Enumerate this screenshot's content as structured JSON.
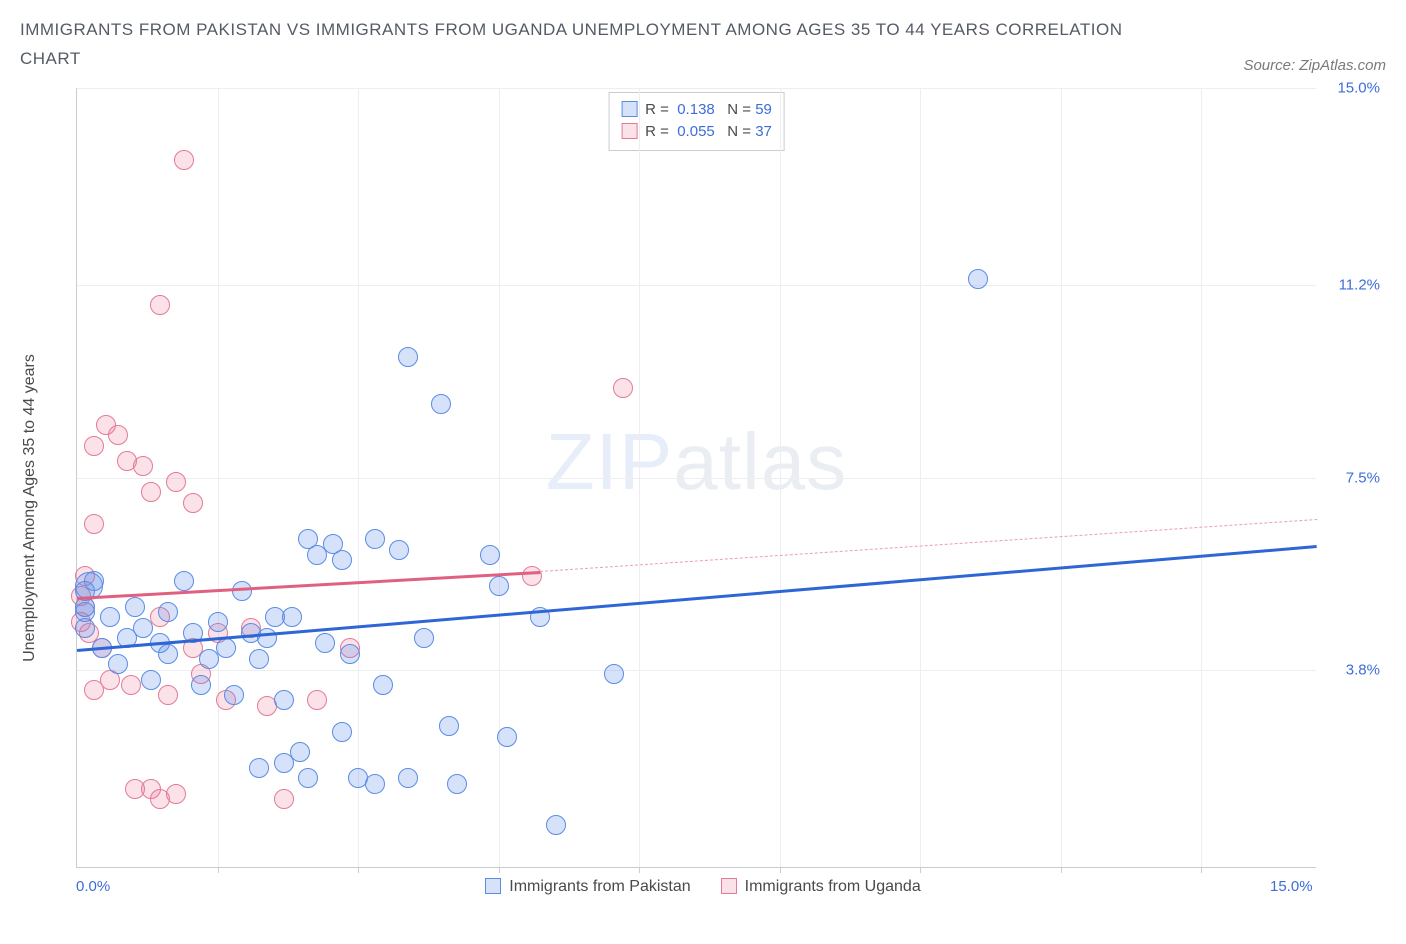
{
  "title": "IMMIGRANTS FROM PAKISTAN VS IMMIGRANTS FROM UGANDA UNEMPLOYMENT AMONG AGES 35 TO 44 YEARS CORRELATION CHART",
  "source": "Source: ZipAtlas.com",
  "ylabel": "Unemployment Among Ages 35 to 44 years",
  "watermark_bold": "ZIP",
  "watermark_thin": "atlas",
  "chart": {
    "type": "scatter",
    "xlim": [
      0,
      15
    ],
    "ylim": [
      0,
      15
    ],
    "xaxis_min_label": "0.0%",
    "xaxis_max_label": "15.0%",
    "y_ticks": [
      {
        "value": 3.8,
        "label": "3.8%"
      },
      {
        "value": 7.5,
        "label": "7.5%"
      },
      {
        "value": 11.2,
        "label": "11.2%"
      },
      {
        "value": 15.0,
        "label": "15.0%"
      }
    ],
    "x_tick_positions": [
      1.7,
      3.4,
      5.1,
      6.8,
      8.5,
      10.2,
      11.9,
      13.6
    ],
    "series": [
      {
        "name": "Immigrants from Pakistan",
        "fill": "rgba(90,140,230,0.25)",
        "stroke": "#5a8ce6",
        "marker_radius": 10,
        "stroke_width": 1.2,
        "trend": {
          "x1": 0,
          "y1": 4.2,
          "x2": 15,
          "y2": 6.2,
          "color": "#2f66d6",
          "width": 2.5
        },
        "points": [
          {
            "x": 0.1,
            "y": 4.6
          },
          {
            "x": 0.1,
            "y": 5.0
          },
          {
            "x": 0.1,
            "y": 5.3
          },
          {
            "x": 0.1,
            "y": 4.9
          },
          {
            "x": 0.15,
            "y": 5.4,
            "r": 14
          },
          {
            "x": 0.3,
            "y": 4.2
          },
          {
            "x": 0.4,
            "y": 4.8
          },
          {
            "x": 0.5,
            "y": 3.9
          },
          {
            "x": 0.6,
            "y": 4.4
          },
          {
            "x": 0.7,
            "y": 5.0
          },
          {
            "x": 0.8,
            "y": 4.6
          },
          {
            "x": 0.9,
            "y": 3.6
          },
          {
            "x": 1.0,
            "y": 4.3
          },
          {
            "x": 1.1,
            "y": 4.9
          },
          {
            "x": 1.1,
            "y": 4.1
          },
          {
            "x": 1.3,
            "y": 5.5
          },
          {
            "x": 1.4,
            "y": 4.5
          },
          {
            "x": 1.5,
            "y": 3.5
          },
          {
            "x": 1.6,
            "y": 4.0
          },
          {
            "x": 1.7,
            "y": 4.7
          },
          {
            "x": 1.8,
            "y": 4.2
          },
          {
            "x": 1.9,
            "y": 3.3
          },
          {
            "x": 2.0,
            "y": 5.3
          },
          {
            "x": 2.1,
            "y": 4.5
          },
          {
            "x": 2.2,
            "y": 1.9
          },
          {
            "x": 2.2,
            "y": 4.0
          },
          {
            "x": 2.3,
            "y": 4.4
          },
          {
            "x": 2.4,
            "y": 4.8
          },
          {
            "x": 2.5,
            "y": 2.0
          },
          {
            "x": 2.5,
            "y": 3.2
          },
          {
            "x": 2.6,
            "y": 4.8
          },
          {
            "x": 2.7,
            "y": 2.2
          },
          {
            "x": 2.8,
            "y": 6.3
          },
          {
            "x": 2.8,
            "y": 1.7
          },
          {
            "x": 2.9,
            "y": 6.0
          },
          {
            "x": 3.0,
            "y": 4.3
          },
          {
            "x": 3.1,
            "y": 6.2
          },
          {
            "x": 3.2,
            "y": 5.9
          },
          {
            "x": 3.2,
            "y": 2.6
          },
          {
            "x": 3.3,
            "y": 4.1
          },
          {
            "x": 3.4,
            "y": 1.7
          },
          {
            "x": 3.6,
            "y": 6.3
          },
          {
            "x": 3.6,
            "y": 1.6
          },
          {
            "x": 3.7,
            "y": 3.5
          },
          {
            "x": 3.9,
            "y": 6.1
          },
          {
            "x": 4.0,
            "y": 9.8
          },
          {
            "x": 4.0,
            "y": 1.7
          },
          {
            "x": 4.2,
            "y": 4.4
          },
          {
            "x": 4.4,
            "y": 8.9
          },
          {
            "x": 4.5,
            "y": 2.7
          },
          {
            "x": 4.6,
            "y": 1.6
          },
          {
            "x": 5.0,
            "y": 6.0
          },
          {
            "x": 5.1,
            "y": 5.4
          },
          {
            "x": 5.2,
            "y": 2.5
          },
          {
            "x": 5.6,
            "y": 4.8
          },
          {
            "x": 5.8,
            "y": 0.8
          },
          {
            "x": 6.5,
            "y": 3.7
          },
          {
            "x": 10.9,
            "y": 11.3
          },
          {
            "x": 0.2,
            "y": 5.5
          }
        ]
      },
      {
        "name": "Immigrants from Uganda",
        "fill": "rgba(235,120,150,0.22)",
        "stroke": "#e47b96",
        "marker_radius": 10,
        "stroke_width": 1.2,
        "trend_solid": {
          "x1": 0,
          "y1": 5.2,
          "x2": 5.6,
          "y2": 5.7,
          "color": "#e0607f",
          "width": 2.5
        },
        "trend_dash": {
          "x1": 5.6,
          "y1": 5.7,
          "x2": 15,
          "y2": 6.7,
          "color": "#e99fb2",
          "width": 1.8
        },
        "points": [
          {
            "x": 0.05,
            "y": 5.2
          },
          {
            "x": 0.05,
            "y": 4.7
          },
          {
            "x": 0.1,
            "y": 5.6
          },
          {
            "x": 0.1,
            "y": 5.0
          },
          {
            "x": 0.15,
            "y": 4.5
          },
          {
            "x": 0.2,
            "y": 8.1
          },
          {
            "x": 0.2,
            "y": 6.6
          },
          {
            "x": 0.2,
            "y": 3.4
          },
          {
            "x": 0.3,
            "y": 4.2
          },
          {
            "x": 0.35,
            "y": 8.5
          },
          {
            "x": 0.4,
            "y": 3.6
          },
          {
            "x": 0.5,
            "y": 8.3
          },
          {
            "x": 0.6,
            "y": 7.8
          },
          {
            "x": 0.65,
            "y": 3.5
          },
          {
            "x": 0.7,
            "y": 1.5
          },
          {
            "x": 0.8,
            "y": 7.7
          },
          {
            "x": 0.9,
            "y": 1.5
          },
          {
            "x": 0.9,
            "y": 7.2
          },
          {
            "x": 1.0,
            "y": 10.8
          },
          {
            "x": 1.0,
            "y": 4.8
          },
          {
            "x": 1.0,
            "y": 1.3
          },
          {
            "x": 1.1,
            "y": 3.3
          },
          {
            "x": 1.2,
            "y": 7.4
          },
          {
            "x": 1.2,
            "y": 1.4
          },
          {
            "x": 1.3,
            "y": 13.6
          },
          {
            "x": 1.4,
            "y": 7.0
          },
          {
            "x": 1.4,
            "y": 4.2
          },
          {
            "x": 1.5,
            "y": 3.7
          },
          {
            "x": 1.7,
            "y": 4.5
          },
          {
            "x": 1.8,
            "y": 3.2
          },
          {
            "x": 2.1,
            "y": 4.6
          },
          {
            "x": 2.3,
            "y": 3.1
          },
          {
            "x": 2.5,
            "y": 1.3
          },
          {
            "x": 2.9,
            "y": 3.2
          },
          {
            "x": 3.3,
            "y": 4.2
          },
          {
            "x": 5.5,
            "y": 5.6
          },
          {
            "x": 6.6,
            "y": 9.2
          }
        ]
      }
    ],
    "legend_box": [
      {
        "swatch_fill": "rgba(90,140,230,0.25)",
        "swatch_stroke": "#5a8ce6",
        "r_label": "R =",
        "r_value": "0.138",
        "n_label": "N =",
        "n_value": "59"
      },
      {
        "swatch_fill": "rgba(235,120,150,0.22)",
        "swatch_stroke": "#e47b96",
        "r_label": "R =",
        "r_value": "0.055",
        "n_label": "N =",
        "n_value": "37"
      }
    ],
    "bottom_legend": [
      {
        "swatch_fill": "rgba(90,140,230,0.25)",
        "swatch_stroke": "#5a8ce6",
        "label": "Immigrants from Pakistan"
      },
      {
        "swatch_fill": "rgba(235,120,150,0.22)",
        "swatch_stroke": "#e47b96",
        "label": "Immigrants from Uganda"
      }
    ],
    "background_color": "#ffffff",
    "grid_color": "#eceef2",
    "axis_color": "#c9ccd2",
    "tick_label_color": "#3d6dd8",
    "title_color": "#555b66",
    "title_fontsize": 17,
    "label_fontsize": 16
  }
}
